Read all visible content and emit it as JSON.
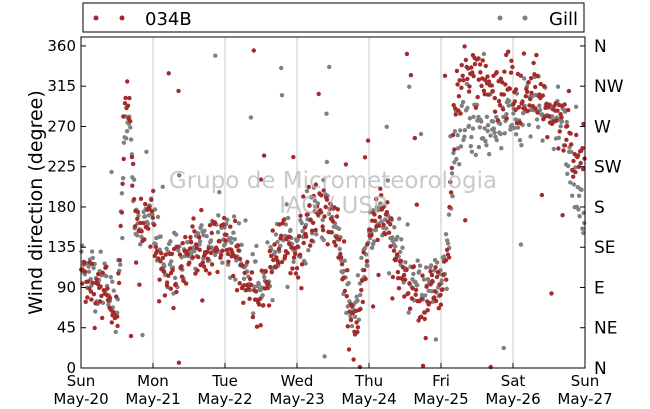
{
  "chart_data": {
    "type": "scatter",
    "title": "",
    "ylabel": "Wind direction (degree)",
    "xlabel": "",
    "ylim": [
      0,
      370
    ],
    "xlim": [
      0,
      7
    ],
    "yticks": [
      0,
      45,
      90,
      135,
      180,
      225,
      270,
      315,
      360
    ],
    "xticks": [
      {
        "value": 0,
        "day": "Sun",
        "date": "May-20"
      },
      {
        "value": 1,
        "day": "Mon",
        "date": "May-21"
      },
      {
        "value": 2,
        "day": "Tue",
        "date": "May-22"
      },
      {
        "value": 3,
        "day": "Wed",
        "date": "May-23"
      },
      {
        "value": 4,
        "day": "Thu",
        "date": "May-24"
      },
      {
        "value": 5,
        "day": "Fri",
        "date": "May-25"
      },
      {
        "value": 6,
        "day": "Sat",
        "date": "May-26"
      },
      {
        "value": 7,
        "day": "Sun",
        "date": "May-27"
      }
    ],
    "compass_ticks": [
      {
        "value": 0,
        "label": "N"
      },
      {
        "value": 45,
        "label": "NE"
      },
      {
        "value": 90,
        "label": "E"
      },
      {
        "value": 135,
        "label": "SE"
      },
      {
        "value": 180,
        "label": "S"
      },
      {
        "value": 225,
        "label": "SW"
      },
      {
        "value": 270,
        "label": "W"
      },
      {
        "value": 315,
        "label": "NW"
      },
      {
        "value": 360,
        "label": "N"
      }
    ],
    "vertical_grid": true,
    "legend_placement": "top",
    "series": [
      {
        "name": "034B",
        "color": "#a52a2a",
        "trend": [
          [
            0,
            105
          ],
          [
            0.15,
            100
          ],
          [
            0.35,
            80
          ],
          [
            0.5,
            45
          ],
          [
            0.62,
            310
          ],
          [
            0.7,
            280
          ],
          [
            0.75,
            160
          ],
          [
            0.85,
            150
          ],
          [
            0.95,
            175
          ],
          [
            1.1,
            120
          ],
          [
            1.3,
            100
          ],
          [
            1.45,
            115
          ],
          [
            1.6,
            140
          ],
          [
            1.8,
            130
          ],
          [
            2.0,
            140
          ],
          [
            2.2,
            120
          ],
          [
            2.35,
            85
          ],
          [
            2.5,
            75
          ],
          [
            2.65,
            110
          ],
          [
            2.8,
            140
          ],
          [
            3.0,
            120
          ],
          [
            3.15,
            160
          ],
          [
            3.3,
            190
          ],
          [
            3.45,
            170
          ],
          [
            3.6,
            130
          ],
          [
            3.72,
            50
          ],
          [
            3.85,
            55
          ],
          [
            4.0,
            150
          ],
          [
            4.15,
            165
          ],
          [
            4.3,
            150
          ],
          [
            4.45,
            110
          ],
          [
            4.6,
            90
          ],
          [
            4.75,
            70
          ],
          [
            4.9,
            80
          ],
          [
            5.0,
            90
          ],
          [
            5.1,
            130
          ],
          [
            5.2,
            300
          ],
          [
            5.35,
            330
          ],
          [
            5.5,
            330
          ],
          [
            5.65,
            310
          ],
          [
            5.8,
            300
          ],
          [
            5.95,
            320
          ],
          [
            6.1,
            300
          ],
          [
            6.3,
            310
          ],
          [
            6.5,
            290
          ],
          [
            6.7,
            290
          ],
          [
            6.85,
            240
          ],
          [
            7.0,
            230
          ]
        ],
        "spread": 18,
        "count": 650,
        "outlier_fraction": 0.06
      },
      {
        "name": "Gill",
        "color": "#808080",
        "trend": [
          [
            0,
            115
          ],
          [
            0.15,
            110
          ],
          [
            0.35,
            90
          ],
          [
            0.5,
            60
          ],
          [
            0.62,
            270
          ],
          [
            0.7,
            250
          ],
          [
            0.75,
            160
          ],
          [
            0.85,
            155
          ],
          [
            0.95,
            170
          ],
          [
            1.1,
            125
          ],
          [
            1.3,
            110
          ],
          [
            1.45,
            120
          ],
          [
            1.6,
            145
          ],
          [
            1.8,
            140
          ],
          [
            2.0,
            145
          ],
          [
            2.2,
            125
          ],
          [
            2.35,
            95
          ],
          [
            2.5,
            90
          ],
          [
            2.65,
            120
          ],
          [
            2.8,
            150
          ],
          [
            3.0,
            135
          ],
          [
            3.15,
            165
          ],
          [
            3.3,
            175
          ],
          [
            3.45,
            170
          ],
          [
            3.6,
            140
          ],
          [
            3.72,
            65
          ],
          [
            3.85,
            75
          ],
          [
            4.0,
            150
          ],
          [
            4.15,
            160
          ],
          [
            4.3,
            150
          ],
          [
            4.45,
            120
          ],
          [
            4.6,
            105
          ],
          [
            4.75,
            90
          ],
          [
            4.9,
            95
          ],
          [
            5.0,
            110
          ],
          [
            5.1,
            140
          ],
          [
            5.2,
            260
          ],
          [
            5.35,
            280
          ],
          [
            5.5,
            270
          ],
          [
            5.65,
            260
          ],
          [
            5.8,
            265
          ],
          [
            5.95,
            280
          ],
          [
            6.1,
            280
          ],
          [
            6.3,
            290
          ],
          [
            6.5,
            280
          ],
          [
            6.7,
            270
          ],
          [
            6.85,
            200
          ],
          [
            7.0,
            170
          ]
        ],
        "spread": 16,
        "count": 650,
        "outlier_fraction": 0.05
      }
    ],
    "watermark": [
      "Grupo de Micrometeorologia",
      "IAG / USP"
    ]
  }
}
